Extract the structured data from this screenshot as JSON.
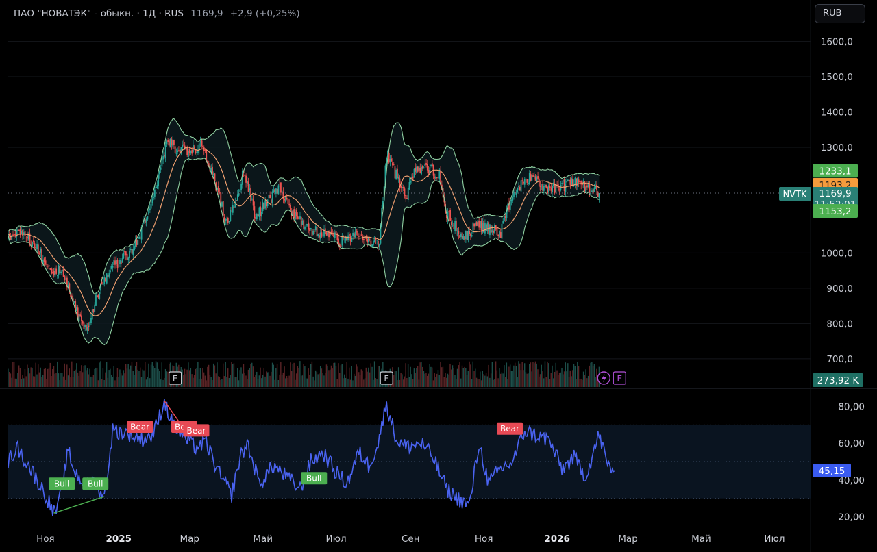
{
  "header": {
    "title": "ПАО \"НОВАТЭК\" - обыкн. · 1Д · RUS",
    "price": "1169,9",
    "change": "+2,9 (+0,25%)"
  },
  "currency_button": "RUB",
  "colors": {
    "up": "#26a69a",
    "down": "#ef5350",
    "ma": "#f0a070",
    "bb": "#8fcfa0",
    "rsi": "#4a63f0",
    "bull": "#4caf50",
    "bear": "#e84a55"
  },
  "price_axis": {
    "ticks": [
      "1600,0",
      "1500,0",
      "1400,0",
      "1300,0",
      "1000,0",
      "900,0",
      "800,0",
      "700,0"
    ]
  },
  "rsi_axis": {
    "ticks": [
      "80,00",
      "60,00",
      "40,00",
      "20,00"
    ]
  },
  "time_axis": {
    "labels": [
      {
        "text": "Ноя",
        "bold": false
      },
      {
        "text": "2025",
        "bold": true
      },
      {
        "text": "Мар",
        "bold": false
      },
      {
        "text": "Май",
        "bold": false
      },
      {
        "text": "Июл",
        "bold": false
      },
      {
        "text": "Сен",
        "bold": false
      },
      {
        "text": "Ноя",
        "bold": false
      },
      {
        "text": "2026",
        "bold": true
      },
      {
        "text": "Мар",
        "bold": false
      },
      {
        "text": "Май",
        "bold": false
      },
      {
        "text": "Июл",
        "bold": false
      }
    ]
  },
  "badges": {
    "bb_upper": "1233,1",
    "ma": "1193,2",
    "last": "1169,9",
    "countdown": "11:52:01",
    "bb_lower": "1153,2",
    "symbol": "NVTK",
    "volume": "273,92 K",
    "rsi": "45,15"
  },
  "events": [
    {
      "label": "E"
    },
    {
      "label": "E"
    },
    {
      "label": "E"
    }
  ],
  "divergences": [
    {
      "label": "Bull",
      "type": "bull"
    },
    {
      "label": "Bull",
      "type": "bull"
    },
    {
      "label": "Bull",
      "type": "bull"
    },
    {
      "label": "Bear",
      "type": "bear"
    },
    {
      "label": "Bear",
      "type": "bear"
    },
    {
      "label": "Bear",
      "type": "bear"
    },
    {
      "label": "Bear",
      "type": "bear"
    }
  ],
  "chart_data": {
    "type": "candlestick",
    "title": "ПАО \"НОВАТЭК\" - обыкн. · 1Д · RUS",
    "interval": "1D",
    "currency": "RUB",
    "x_start": "2024-10-01",
    "x_end": "2026-07-31",
    "price_range": [
      620,
      1640
    ],
    "close_keypoints": [
      [
        "2024-10-01",
        1040
      ],
      [
        "2024-10-10",
        1060
      ],
      [
        "2024-10-25",
        1015
      ],
      [
        "2024-11-05",
        940
      ],
      [
        "2024-11-15",
        960
      ],
      [
        "2024-11-28",
        820
      ],
      [
        "2024-12-06",
        790
      ],
      [
        "2024-12-16",
        900
      ],
      [
        "2024-12-25",
        960
      ],
      [
        "2025-01-10",
        1000
      ],
      [
        "2025-01-20",
        1060
      ],
      [
        "2025-02-01",
        1180
      ],
      [
        "2025-02-10",
        1320
      ],
      [
        "2025-02-20",
        1290
      ],
      [
        "2025-03-01",
        1290
      ],
      [
        "2025-03-10",
        1300
      ],
      [
        "2025-03-20",
        1230
      ],
      [
        "2025-04-01",
        1080
      ],
      [
        "2025-04-10",
        1160
      ],
      [
        "2025-04-15",
        1240
      ],
      [
        "2025-04-25",
        1100
      ],
      [
        "2025-05-05",
        1150
      ],
      [
        "2025-05-15",
        1180
      ],
      [
        "2025-05-25",
        1120
      ],
      [
        "2025-06-10",
        1060
      ],
      [
        "2025-06-25",
        1060
      ],
      [
        "2025-07-05",
        1030
      ],
      [
        "2025-07-20",
        1060
      ],
      [
        "2025-08-01",
        1020
      ],
      [
        "2025-08-06",
        1030
      ],
      [
        "2025-08-12",
        1280
      ],
      [
        "2025-08-20",
        1220
      ],
      [
        "2025-08-28",
        1160
      ],
      [
        "2025-09-05",
        1240
      ],
      [
        "2025-09-15",
        1240
      ],
      [
        "2025-09-25",
        1220
      ],
      [
        "2025-10-01",
        1110
      ],
      [
        "2025-10-15",
        1040
      ],
      [
        "2025-10-25",
        1080
      ],
      [
        "2025-11-05",
        1070
      ],
      [
        "2025-11-15",
        1060
      ],
      [
        "2025-11-25",
        1170
      ],
      [
        "2025-12-10",
        1220
      ],
      [
        "2025-12-20",
        1180
      ],
      [
        "2026-01-05",
        1190
      ],
      [
        "2026-01-15",
        1200
      ],
      [
        "2026-01-25",
        1190
      ],
      [
        "2026-02-05",
        1169.9
      ]
    ],
    "indicators": {
      "ma_last": 1193.2,
      "bb_upper_last": 1233.1,
      "bb_lower_last": 1153.2,
      "volume_last": "273,92 K",
      "rsi_last": 45.15
    },
    "rsi_range": [
      15,
      88
    ],
    "rsi_band": [
      30,
      70
    ],
    "rsi_keypoints": [
      [
        "2024-10-01",
        50
      ],
      [
        "2024-10-08",
        58
      ],
      [
        "2024-10-18",
        48
      ],
      [
        "2024-11-01",
        32
      ],
      [
        "2024-11-08",
        22
      ],
      [
        "2024-11-12",
        26
      ],
      [
        "2024-11-20",
        56
      ],
      [
        "2024-11-25",
        45
      ],
      [
        "2024-12-05",
        36
      ],
      [
        "2024-12-12",
        40
      ],
      [
        "2024-12-20",
        30
      ],
      [
        "2024-12-27",
        67
      ],
      [
        "2025-01-10",
        65
      ],
      [
        "2025-01-20",
        62
      ],
      [
        "2025-01-30",
        65
      ],
      [
        "2025-02-08",
        83
      ],
      [
        "2025-02-15",
        70
      ],
      [
        "2025-02-25",
        63
      ],
      [
        "2025-03-05",
        58
      ],
      [
        "2025-03-15",
        60
      ],
      [
        "2025-03-25",
        44
      ],
      [
        "2025-04-05",
        32
      ],
      [
        "2025-04-12",
        52
      ],
      [
        "2025-04-18",
        60
      ],
      [
        "2025-04-28",
        38
      ],
      [
        "2025-05-10",
        48
      ],
      [
        "2025-05-20",
        42
      ],
      [
        "2025-06-01",
        35
      ],
      [
        "2025-06-10",
        50
      ],
      [
        "2025-06-20",
        55
      ],
      [
        "2025-06-30",
        45
      ],
      [
        "2025-07-10",
        38
      ],
      [
        "2025-07-20",
        55
      ],
      [
        "2025-07-28",
        48
      ],
      [
        "2025-08-05",
        60
      ],
      [
        "2025-08-12",
        82
      ],
      [
        "2025-08-20",
        62
      ],
      [
        "2025-08-28",
        58
      ],
      [
        "2025-09-10",
        60
      ],
      [
        "2025-09-20",
        52
      ],
      [
        "2025-10-01",
        35
      ],
      [
        "2025-10-10",
        30
      ],
      [
        "2025-10-20",
        26
      ],
      [
        "2025-10-28",
        60
      ],
      [
        "2025-11-05",
        38
      ],
      [
        "2025-11-15",
        46
      ],
      [
        "2025-11-25",
        50
      ],
      [
        "2025-12-05",
        67
      ],
      [
        "2025-12-15",
        64
      ],
      [
        "2025-12-25",
        62
      ],
      [
        "2026-01-05",
        46
      ],
      [
        "2026-01-15",
        52
      ],
      [
        "2026-01-25",
        42
      ],
      [
        "2026-02-05",
        65
      ],
      [
        "2026-02-12",
        48
      ],
      [
        "2026-02-18",
        45.15
      ]
    ]
  }
}
